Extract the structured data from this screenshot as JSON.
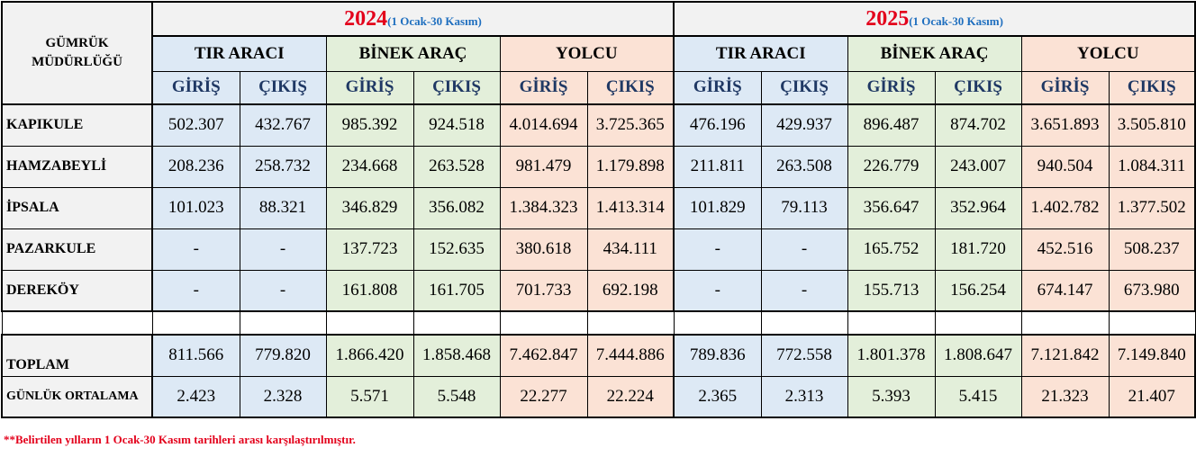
{
  "header": {
    "corner": "GÜMRÜK MÜDÜRLÜĞÜ",
    "years": [
      {
        "year": "2024",
        "range": "(1 Ocak-30 Kasım)"
      },
      {
        "year": "2025",
        "range": "(1 Ocak-30 Kasım)"
      }
    ],
    "groups": [
      "TIR ARACI",
      "BİNEK ARAÇ",
      "YOLCU",
      "TIR ARACI",
      "BİNEK ARAÇ",
      "YOLCU"
    ],
    "subs": [
      "GİRİŞ",
      "ÇIKIŞ",
      "GİRİŞ",
      "ÇIKIŞ",
      "GİRİŞ",
      "ÇIKIŞ",
      "GİRİŞ",
      "ÇIKIŞ",
      "GİRİŞ",
      "ÇIKIŞ",
      "GİRİŞ",
      "ÇIKIŞ"
    ]
  },
  "rows": [
    {
      "name": "KAPIKULE",
      "values": [
        "502.307",
        "432.767",
        "985.392",
        "924.518",
        "4.014.694",
        "3.725.365",
        "476.196",
        "429.937",
        "896.487",
        "874.702",
        "3.651.893",
        "3.505.810"
      ]
    },
    {
      "name": "HAMZABEYLİ",
      "values": [
        "208.236",
        "258.732",
        "234.668",
        "263.528",
        "981.479",
        "1.179.898",
        "211.811",
        "263.508",
        "226.779",
        "243.007",
        "940.504",
        "1.084.311"
      ]
    },
    {
      "name": "İPSALA",
      "values": [
        "101.023",
        "88.321",
        "346.829",
        "356.082",
        "1.384.323",
        "1.413.314",
        "101.829",
        "79.113",
        "356.647",
        "352.964",
        "1.402.782",
        "1.377.502"
      ]
    },
    {
      "name": "PAZARKULE",
      "values": [
        "-",
        "-",
        "137.723",
        "152.635",
        "380.618",
        "434.111",
        "-",
        "-",
        "165.752",
        "181.720",
        "452.516",
        "508.237"
      ]
    },
    {
      "name": "DEREKÖY",
      "values": [
        "-",
        "-",
        "161.808",
        "161.705",
        "701.733",
        "692.198",
        "-",
        "-",
        "155.713",
        "156.254",
        "674.147",
        "673.980"
      ]
    }
  ],
  "total": {
    "name": "TOPLAM",
    "values": [
      "811.566",
      "779.820",
      "1.866.420",
      "1.858.468",
      "7.462.847",
      "7.444.886",
      "789.836",
      "772.558",
      "1.801.378",
      "1.808.647",
      "7.121.842",
      "7.149.840"
    ]
  },
  "average": {
    "name": "GÜNLÜK ORTALAMA",
    "values": [
      "2.423",
      "2.328",
      "5.571",
      "5.548",
      "22.277",
      "22.224",
      "2.365",
      "2.313",
      "5.393",
      "5.415",
      "21.323",
      "21.407"
    ]
  },
  "footnote": "**Belirtilen yılların 1 Ocak-30 Kasım tarihleri arası karşılaştırılmıştır.",
  "colors": {
    "tir": "#dde9f5",
    "binek": "#e3efda",
    "yolcu": "#fbe2d5",
    "year_text": "#e3001b",
    "range_text": "#1f6fbf",
    "footnote": "#e3001b"
  }
}
